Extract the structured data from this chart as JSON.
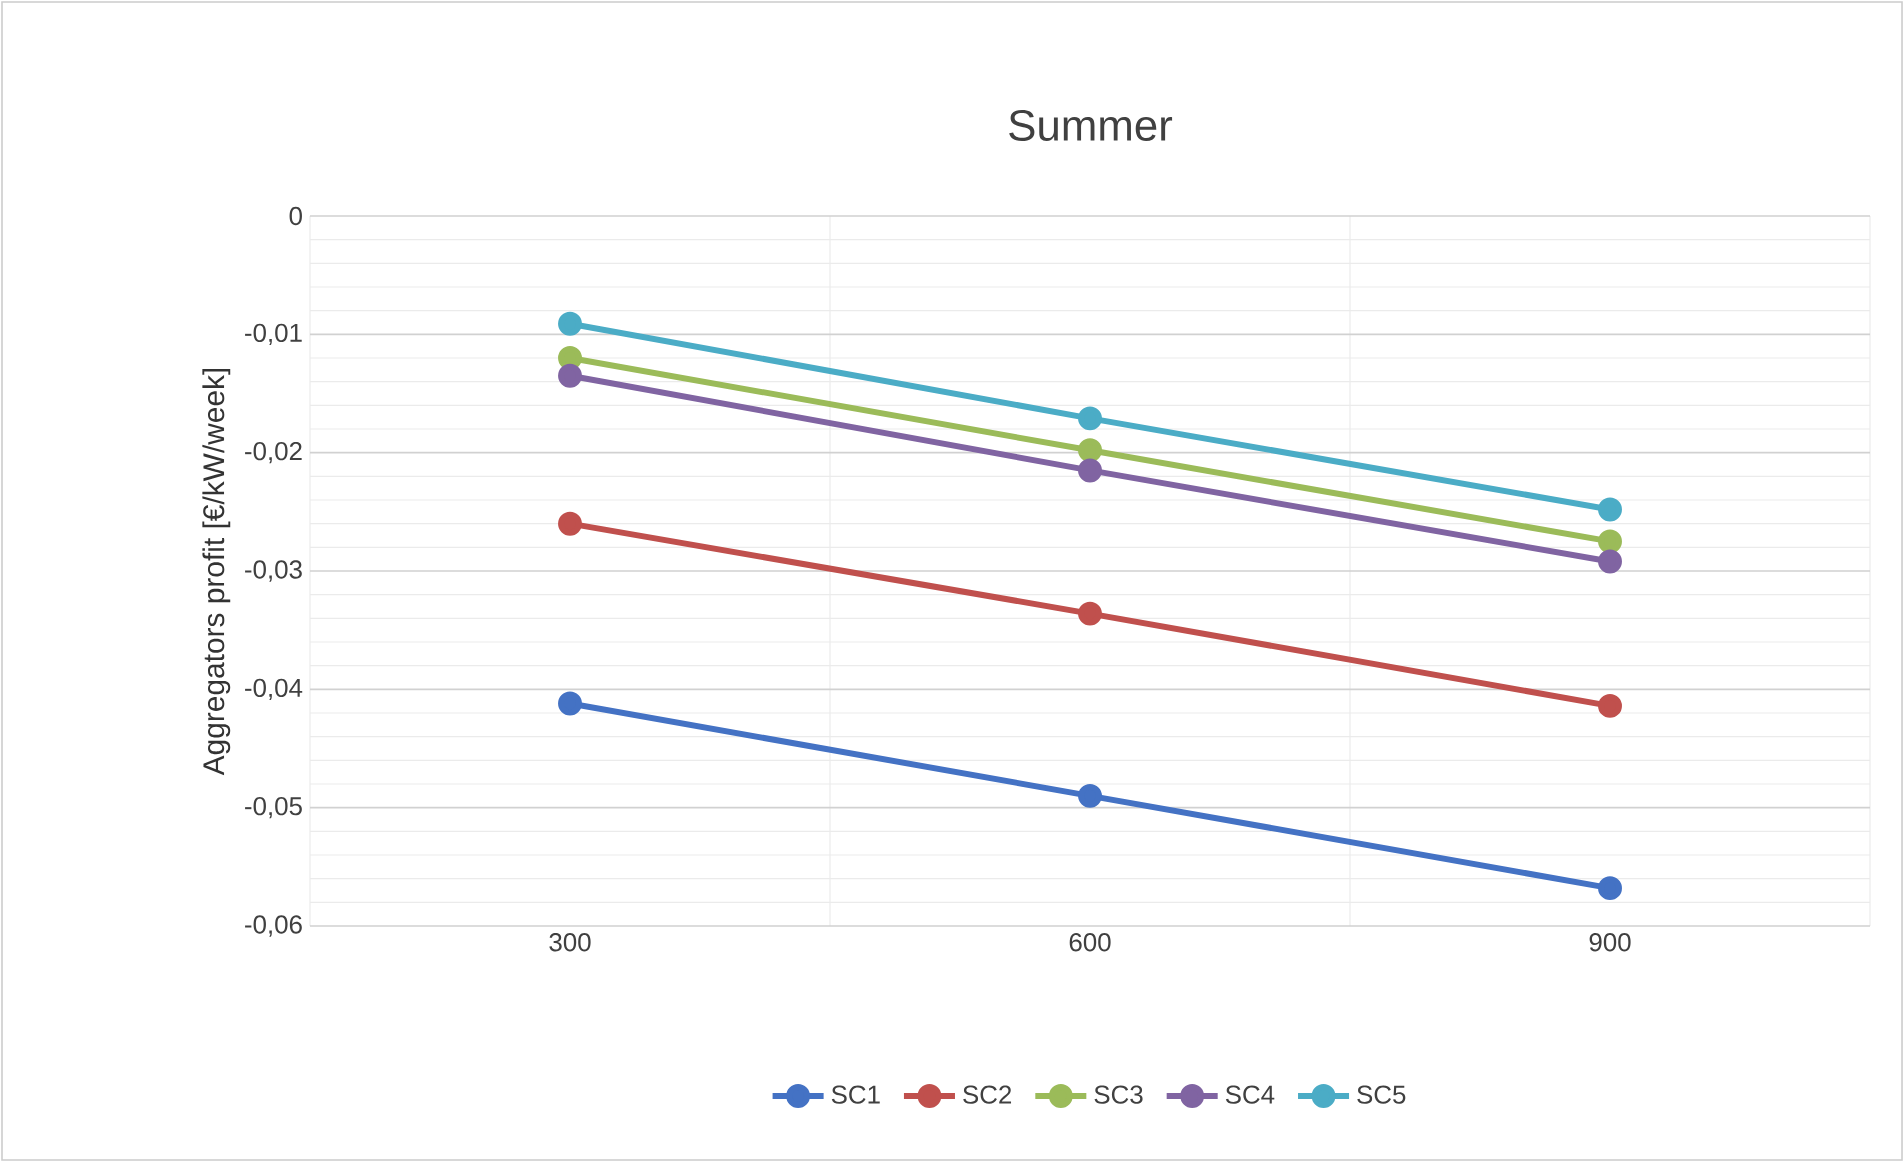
{
  "chart_data": {
    "type": "line",
    "title": "Summer",
    "ylabel": "Aggregators profit [€/kW/week]",
    "categories": [
      "300",
      "600",
      "900"
    ],
    "ylim": [
      -0.06,
      0
    ],
    "yticks": [
      {
        "value": 0,
        "label": "0"
      },
      {
        "value": -0.01,
        "label": "-0,01"
      },
      {
        "value": -0.02,
        "label": "-0,02"
      },
      {
        "value": -0.03,
        "label": "-0,03"
      },
      {
        "value": -0.04,
        "label": "-0,04"
      },
      {
        "value": -0.05,
        "label": "-0,05"
      },
      {
        "value": -0.06,
        "label": "-0,06"
      }
    ],
    "grid": true,
    "legend": "bottom",
    "marker": "circle",
    "line_style": "solid",
    "series": [
      {
        "name": "SC1",
        "color": "#4472c4",
        "values": [
          -0.0412,
          -0.049,
          -0.0568
        ]
      },
      {
        "name": "SC2",
        "color": "#c0504d",
        "values": [
          -0.026,
          -0.0336,
          -0.0414
        ]
      },
      {
        "name": "SC3",
        "color": "#9bbb59",
        "values": [
          -0.012,
          -0.0198,
          -0.0275
        ]
      },
      {
        "name": "SC4",
        "color": "#8064a2",
        "values": [
          -0.0135,
          -0.0215,
          -0.0292
        ]
      },
      {
        "name": "SC5",
        "color": "#4bacc6",
        "values": [
          -0.0091,
          -0.0171,
          -0.0248
        ]
      }
    ]
  }
}
